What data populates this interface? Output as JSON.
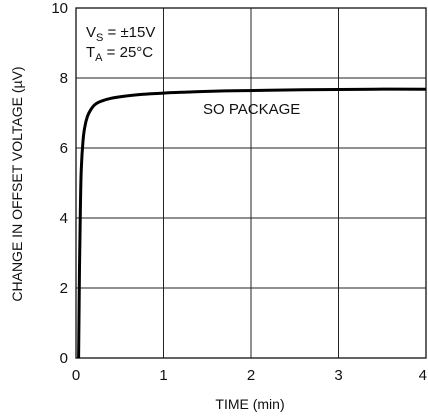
{
  "chart_data": {
    "type": "line",
    "title": "",
    "xlabel": "TIME (min)",
    "ylabel": "CHANGE IN OFFSET VOLTAGE (µV)",
    "xlim": [
      0,
      4
    ],
    "ylim": [
      0,
      10
    ],
    "x_ticks": [
      "0",
      "1",
      "2",
      "3",
      "4"
    ],
    "y_ticks": [
      "0",
      "2",
      "4",
      "6",
      "8",
      "10"
    ],
    "grid": true,
    "conditions": {
      "vs_main": "V",
      "vs_sub": "S",
      "vs_value": " = ±15V",
      "ta_main": "T",
      "ta_sub": "A",
      "ta_value": " = 25°C"
    },
    "annotations": [
      {
        "text": "SO PACKAGE"
      }
    ],
    "series": [
      {
        "x": [
          0.03,
          0.04,
          0.05,
          0.06,
          0.08,
          0.1,
          0.13,
          0.17,
          0.22,
          0.3,
          0.4,
          0.55,
          0.75,
          1.0,
          1.3,
          1.7,
          2.2,
          2.8,
          3.4,
          4.0
        ],
        "y": [
          0.0,
          2.6,
          4.3,
          5.4,
          6.2,
          6.6,
          6.9,
          7.1,
          7.25,
          7.35,
          7.42,
          7.48,
          7.53,
          7.57,
          7.6,
          7.63,
          7.65,
          7.67,
          7.68,
          7.68
        ]
      }
    ]
  }
}
